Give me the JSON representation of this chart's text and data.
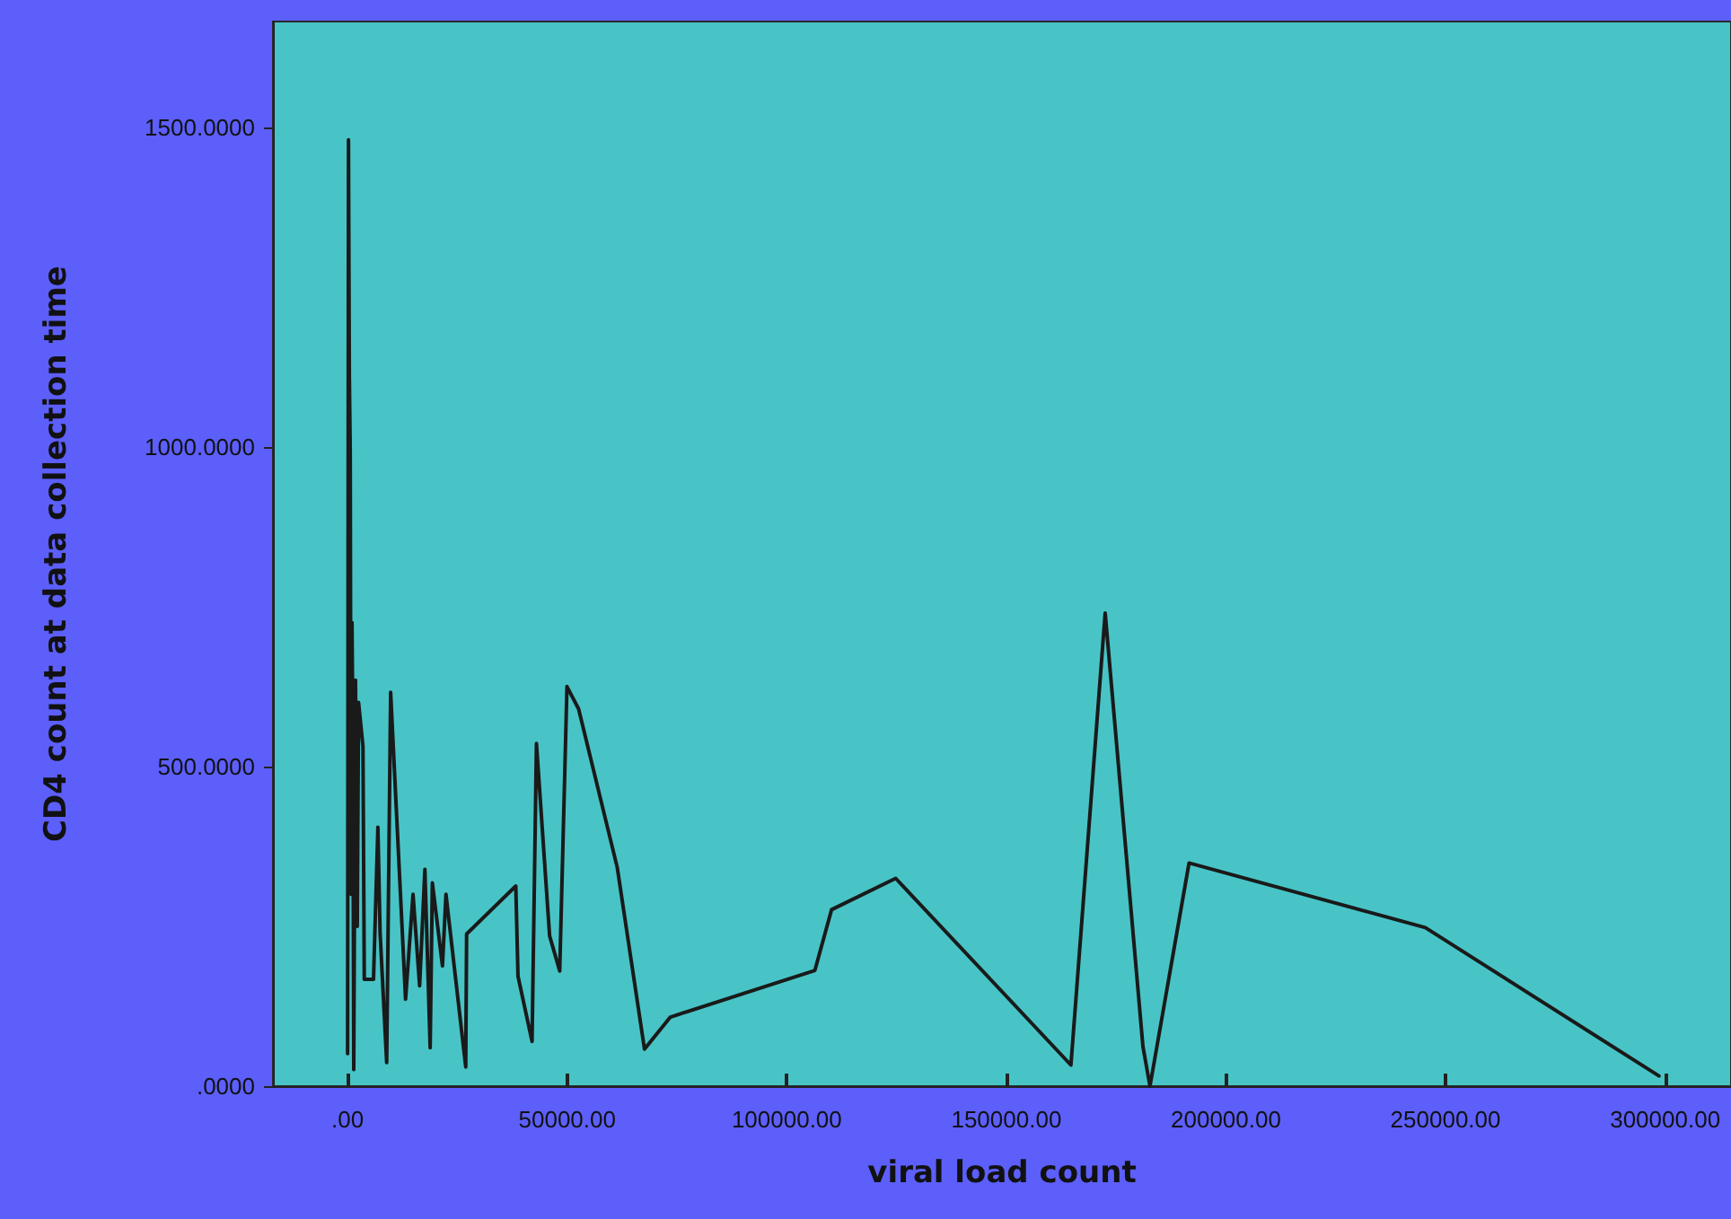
{
  "chart_data": {
    "type": "line",
    "xlabel": "viral load count",
    "ylabel": "CD4 count at data collection time",
    "x": [
      0,
      200,
      400,
      600,
      800,
      1000,
      1200,
      1400,
      1800,
      2200,
      2500,
      3500,
      3800,
      5900,
      6900,
      7400,
      8900,
      9800,
      13200,
      14900,
      16400,
      17600,
      18800,
      19300,
      21600,
      22400,
      26900,
      27100,
      38300,
      38800,
      42000,
      43000,
      46000,
      48300,
      49950,
      52600,
      61400,
      67600,
      73500,
      106400,
      110200,
      124800,
      164700,
      172500,
      181100,
      182700,
      191600,
      245400,
      298600
    ],
    "series": [
      {
        "color": "#1a1a1a",
        "values": [
          51,
          1480,
          1110,
          994,
          300,
          725,
          560,
          26,
          635,
          250,
          600,
          531,
          167,
          167,
          405,
          240,
          37,
          616,
          136,
          300,
          157,
          339,
          60,
          318,
          188,
          300,
          30,
          238,
          313,
          172,
          70,
          536,
          235,
          180,
          625,
          590,
          342,
          58,
          108,
          181,
          276,
          325,
          33,
          740,
          62,
          0,
          349,
          248,
          16
        ]
      }
    ],
    "xlim": [
      -17000,
      315000
    ],
    "ylim": [
      0,
      1665
    ],
    "xticks": [
      {
        "value": 0,
        "label": ".00"
      },
      {
        "value": 50000,
        "label": "50000.00"
      },
      {
        "value": 100000,
        "label": "100000.00"
      },
      {
        "value": 150000,
        "label": "150000.00"
      },
      {
        "value": 200000,
        "label": "200000.00"
      },
      {
        "value": 250000,
        "label": "250000.00"
      },
      {
        "value": 300000,
        "label": "300000.00"
      }
    ],
    "yticks": [
      {
        "value": 0,
        "label": ".0000"
      },
      {
        "value": 500,
        "label": "500.0000"
      },
      {
        "value": 1000,
        "label": "1000.0000"
      },
      {
        "value": 1500,
        "label": "1500.0000"
      }
    ],
    "grid": false,
    "marker": "none",
    "line_style": "solid"
  }
}
